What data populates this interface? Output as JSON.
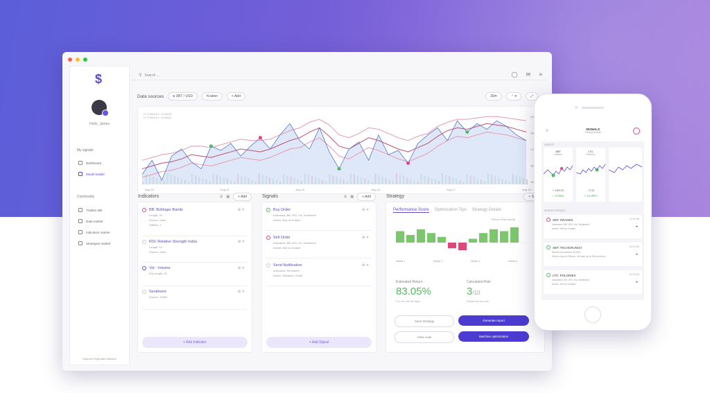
{
  "colors": {
    "accent": "#5a49d6",
    "positive": "#4fbb5f",
    "negative": "#e0457b",
    "bg_gradient_start": "#5b5ed9",
    "bg_gradient_end": "#a37fdc"
  },
  "sidebar": {
    "greeting": "Hello, James",
    "sections": [
      {
        "title": "My signals",
        "items": [
          {
            "label": "Dashboard",
            "icon": "clock-icon"
          },
          {
            "label": "Model builder",
            "icon": "link-icon"
          }
        ]
      },
      {
        "title": "Community",
        "items": [
          {
            "label": "Traders talk",
            "icon": "people-icon"
          },
          {
            "label": "Data market",
            "icon": "grid-icon"
          },
          {
            "label": "Indicators market",
            "icon": "scissors-icon"
          },
          {
            "label": "Strategies market",
            "icon": "chart-icon"
          }
        ]
      }
    ],
    "support": "Support Enigmatic Network"
  },
  "topbar": {
    "search_placeholder": "Search ..."
  },
  "datasources": {
    "label": "Data sources",
    "pair": "XBT / USD",
    "exchange": "Kraken",
    "add_label": "+ Add",
    "interval": "30m"
  },
  "chart_data": {
    "type": "line",
    "x_ticks": [
      "Aug 13",
      "Aug 14",
      "Aug 15",
      "Aug 16",
      "Aug 17",
      "Aug 18"
    ],
    "y_ticks": [
      "4900",
      "4800",
      "4700",
      "4600",
      "4500"
    ],
    "legend_lines": [
      "O: 0.00043   C: 0.00043",
      "H: 0.00043   L: 0.00043"
    ],
    "series": [
      {
        "values": [
          4560,
          4580,
          4600,
          4610,
          4630,
          4660,
          4650,
          4640,
          4660,
          4680,
          4700,
          4690,
          4680,
          4700,
          4730,
          4760,
          4780,
          4820,
          4850,
          4790,
          4720,
          4700,
          4740,
          4780,
          4760,
          4730,
          4700,
          4680,
          4710,
          4740,
          4790,
          4830,
          4850,
          4840,
          4860,
          4880,
          4870,
          4860,
          4840,
          4820
        ]
      },
      {
        "values": [
          4620,
          4640,
          4660,
          4670,
          4690,
          4720,
          4720,
          4710,
          4730,
          4750,
          4770,
          4760,
          4760,
          4770,
          4800,
          4830,
          4850,
          4890,
          4910,
          4870,
          4800,
          4780,
          4810,
          4850,
          4840,
          4810,
          4780,
          4760,
          4790,
          4810,
          4860,
          4890,
          4910,
          4910,
          4920,
          4930,
          4930,
          4920,
          4910,
          4900
        ]
      },
      {
        "values": [
          4500,
          4520,
          4540,
          4550,
          4570,
          4600,
          4590,
          4580,
          4600,
          4620,
          4640,
          4630,
          4620,
          4640,
          4670,
          4700,
          4710,
          4750,
          4780,
          4720,
          4650,
          4630,
          4670,
          4710,
          4690,
          4660,
          4630,
          4610,
          4640,
          4670,
          4720,
          4760,
          4790,
          4780,
          4800,
          4820,
          4810,
          4800,
          4780,
          4760
        ]
      },
      {
        "values": [
          4520,
          4620,
          4480,
          4650,
          4700,
          4610,
          4560,
          4720,
          4690,
          4740,
          4650,
          4720,
          4780,
          4700,
          4800,
          4880,
          4760,
          4700,
          4850,
          4680,
          4560,
          4700,
          4750,
          4620,
          4800,
          4660,
          4690,
          4600,
          4740,
          4800,
          4850,
          4760,
          4900,
          4820,
          4880,
          4840,
          4900,
          4860,
          4800,
          4760
        ]
      }
    ],
    "ylim": [
      4450,
      4950
    ]
  },
  "indicators": {
    "title": "Indicators",
    "add_label": "+ Add",
    "items": [
      {
        "name": "BB: Bollinger Bands",
        "color": "#e0457b",
        "params": [
          "Length:   20",
          "Source:   close",
          "StdDev:   2"
        ]
      },
      {
        "name": "RSI: Relative Strength Index",
        "color": "#cccccc",
        "params": [
          "Length:   14",
          "Source:   close"
        ]
      },
      {
        "name": "Vol : Volume",
        "color": "#5a49d6",
        "params": [
          "MA Length:   20"
        ]
      },
      {
        "name": "Sentiment",
        "color": "#cccccc",
        "params": [
          "Source:   Twitter"
        ]
      }
    ],
    "add_button": "+ Add Indicator"
  },
  "signals": {
    "title": "Signals",
    "add_label": "+ Add",
    "items": [
      {
        "name": "Buy Order",
        "color": "#4fbb5f",
        "params": [
          "Indicators:   BB, RSI, Vol, Sentiment",
          "Action:   Buy on Kraken"
        ]
      },
      {
        "name": "Sell Order",
        "color": "#e0457b",
        "params": [
          "Indicators:   BB, RSI, Vol, Sentiment",
          "Action:   Sell on Kraken"
        ]
      },
      {
        "name": "Send Notification",
        "color": "#cccccc",
        "params": [
          "Indicators:   Sentiment",
          "Action:   Telegram, Email"
        ]
      }
    ],
    "add_button": "+ Add Signal"
  },
  "strategy": {
    "title": "Strategy",
    "save_label": "+ Save",
    "tabs": [
      "Performance Score",
      "Optimization Tips",
      "Strategy Details"
    ],
    "period_label": "Period:   Past month",
    "bars": [
      12,
      8,
      14,
      10,
      6,
      -6,
      -8,
      4,
      10,
      14,
      12,
      16
    ],
    "week_labels": [
      "Week 1",
      "Week 2",
      "Week 3",
      "Week 4"
    ],
    "est_return_label": "Estimated Return",
    "est_return_value": "83.05%",
    "est_return_sub": "For the last 30 days",
    "risk_label": "Calculated Risk",
    "risk_value": "3",
    "risk_denominator": "/10",
    "risk_sub": "Relatively low risk",
    "buttons": {
      "save_strategy": "Save Strategy",
      "generate_report": "Generate report",
      "view_code": "View code",
      "machine_optimization": "Machine optimization"
    }
  },
  "phone": {
    "title": "SIGNALS",
    "subtitle": "Trading History",
    "assets_label": "ASSETS",
    "assets": [
      {
        "name": "XBT",
        "exchange": "Kraken",
        "price": "+ 4,000.20",
        "change": "+ 2.05%"
      },
      {
        "name": "LTC",
        "exchange": "Poloniex",
        "price": "- 72.31",
        "change": "+ 12.09%"
      }
    ],
    "recent_label": "RECENT SIGNALS",
    "signals": [
      {
        "title": "XBT: KRAKEN",
        "time": "11:32 AM",
        "lines": [
          "Indicators:   BB, RSI, Vol, Sentiment",
          "Action:   Sell on Kraken"
        ]
      },
      {
        "title": "XBT: TECHCRUNCH",
        "time": "10:23 AM",
        "lines": [
          "Bitcoin just passed $4,800",
          "What a day for Bitcoin, its back up to the previous..."
        ]
      },
      {
        "title": "LTC: POLONIEX",
        "time": "10:23 AM",
        "lines": [
          "Indicators:   BB, RSI, Vol, Sentiment",
          "Action:   Sell on Kraken"
        ]
      }
    ]
  }
}
